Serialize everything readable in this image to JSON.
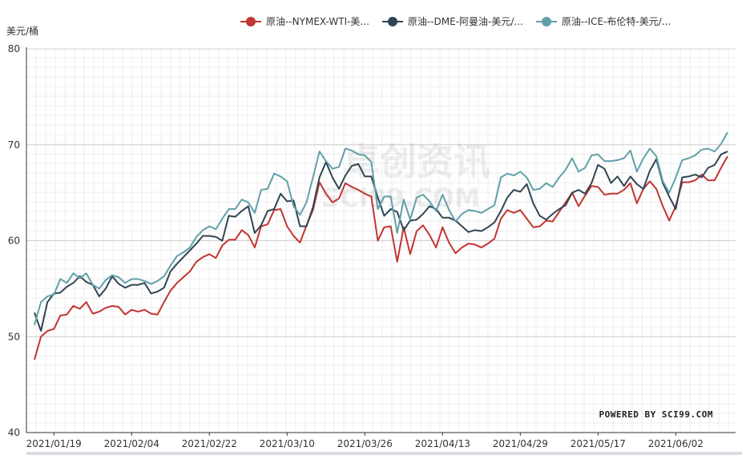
{
  "chart_data": {
    "type": "line",
    "unit_label": "美元/桶",
    "watermark": {
      "cn": "卓创资讯",
      "en": "SCI99.COM"
    },
    "credit": "POWERED BY SCI99.COM",
    "ylim": [
      40,
      80
    ],
    "yticks": [
      "40",
      "50",
      "60",
      "70",
      "80"
    ],
    "x_ticks": [
      "2021/01/19",
      "2021/02/04",
      "2021/02/22",
      "2021/03/10",
      "2021/03/26",
      "2021/04/13",
      "2021/04/29",
      "2021/05/17",
      "2021/06/02"
    ],
    "x_tick_indices": [
      3,
      15,
      27,
      39,
      51,
      63,
      75,
      87,
      99
    ],
    "legend_position": "top",
    "series": [
      {
        "name": "原油--NYMEX-WTI-美...",
        "color": "#c23531",
        "values": [
          47.6,
          50.0,
          50.6,
          50.8,
          52.2,
          52.3,
          53.2,
          52.9,
          53.6,
          52.4,
          52.6,
          53.0,
          53.2,
          53.1,
          52.3,
          52.8,
          52.6,
          52.8,
          52.4,
          52.3,
          53.6,
          54.8,
          55.6,
          56.2,
          56.8,
          57.8,
          58.3,
          58.6,
          58.2,
          59.5,
          60.1,
          60.1,
          61.1,
          60.6,
          59.3,
          61.5,
          61.7,
          63.2,
          63.3,
          61.5,
          60.5,
          59.8,
          61.6,
          63.2,
          66.1,
          64.9,
          64.0,
          64.4,
          66.0,
          65.6,
          65.3,
          64.9,
          64.6,
          60.0,
          61.4,
          61.5,
          57.8,
          61.4,
          58.6,
          61.0,
          61.6,
          60.6,
          59.3,
          61.4,
          59.8,
          58.7,
          59.3,
          59.7,
          59.6,
          59.3,
          59.7,
          60.2,
          62.3,
          63.2,
          62.9,
          63.2,
          62.3,
          61.4,
          61.5,
          62.1,
          62.0,
          63.0,
          64.0,
          65.0,
          63.6,
          64.7,
          65.7,
          65.6,
          64.8,
          64.9,
          64.9,
          65.3,
          66.0,
          63.9,
          65.4,
          66.2,
          65.4,
          63.6,
          62.1,
          63.6,
          66.1,
          66.1,
          66.3,
          66.9,
          66.3,
          66.3,
          67.6,
          68.8
        ]
      },
      {
        "name": "原油--DME-阿曼油-美元/...",
        "color": "#2f4554",
        "values": [
          52.5,
          50.6,
          53.6,
          54.5,
          54.6,
          55.2,
          55.6,
          56.3,
          55.7,
          55.4,
          54.2,
          55.0,
          56.3,
          55.5,
          55.1,
          55.4,
          55.4,
          55.6,
          54.5,
          54.7,
          55.1,
          56.8,
          57.6,
          58.3,
          59.0,
          59.7,
          60.5,
          60.5,
          60.4,
          60.0,
          62.6,
          62.5,
          63.1,
          63.6,
          60.8,
          61.6,
          63.1,
          63.3,
          64.9,
          64.1,
          64.2,
          61.5,
          61.5,
          63.5,
          66.6,
          68.2,
          66.6,
          65.4,
          66.8,
          67.8,
          68.0,
          66.7,
          66.7,
          64.5,
          62.6,
          63.3,
          63.0,
          61.1,
          62.1,
          62.2,
          62.8,
          63.6,
          63.3,
          62.4,
          62.4,
          62.1,
          61.5,
          60.9,
          61.1,
          61.0,
          61.4,
          61.9,
          63.1,
          64.5,
          65.3,
          65.1,
          65.9,
          63.9,
          62.6,
          62.2,
          62.8,
          63.3,
          63.7,
          65.0,
          65.3,
          64.9,
          66.0,
          67.9,
          67.5,
          66.0,
          66.7,
          65.7,
          66.7,
          65.9,
          65.4,
          67.3,
          68.5,
          66.0,
          64.6,
          63.3,
          66.6,
          66.7,
          66.9,
          66.6,
          67.6,
          67.9,
          69.0,
          69.3
        ]
      },
      {
        "name": "原油--ICE-布伦特-美元/...",
        "color": "#61a0a8",
        "values": [
          51.2,
          53.6,
          54.2,
          54.4,
          56.0,
          55.6,
          56.6,
          56.1,
          56.6,
          55.4,
          55.0,
          55.9,
          56.4,
          56.2,
          55.6,
          56.0,
          56.0,
          55.8,
          55.5,
          55.8,
          56.3,
          57.4,
          58.4,
          58.8,
          59.3,
          60.4,
          61.1,
          61.5,
          61.2,
          62.3,
          63.3,
          63.3,
          64.3,
          64.0,
          62.9,
          65.3,
          65.4,
          67.0,
          66.7,
          66.2,
          63.6,
          62.7,
          64.0,
          66.6,
          69.3,
          68.3,
          67.5,
          67.7,
          69.6,
          69.4,
          69.0,
          68.9,
          68.2,
          63.3,
          64.6,
          64.6,
          60.8,
          64.3,
          62.2,
          64.5,
          64.8,
          64.1,
          63.1,
          64.8,
          63.2,
          62.0,
          62.8,
          63.2,
          63.1,
          62.9,
          63.3,
          63.7,
          66.6,
          67.0,
          66.8,
          67.2,
          66.6,
          65.3,
          65.4,
          66.0,
          65.6,
          66.6,
          67.4,
          68.6,
          67.2,
          67.6,
          68.9,
          69.0,
          68.3,
          68.3,
          68.4,
          68.6,
          69.4,
          67.2,
          68.6,
          69.6,
          68.8,
          66.2,
          65.0,
          66.6,
          68.4,
          68.6,
          68.9,
          69.5,
          69.6,
          69.3,
          70.1,
          71.3
        ]
      }
    ]
  }
}
